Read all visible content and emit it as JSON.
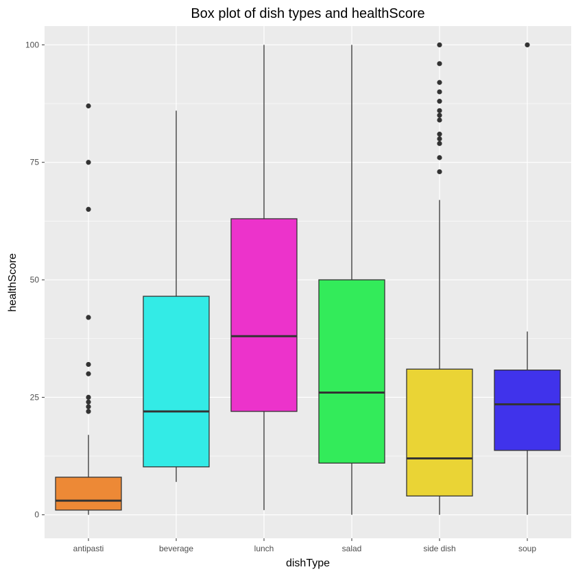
{
  "chart_data": {
    "type": "boxplot",
    "title": "Box plot of dish types and healthScore",
    "xlabel": "dishType",
    "ylabel": "healthScore",
    "ylim": [
      -5,
      104
    ],
    "yticks": [
      0,
      25,
      50,
      75,
      100
    ],
    "grid": true,
    "categories": [
      "antipasti",
      "beverage",
      "lunch",
      "salad",
      "side dish",
      "soup"
    ],
    "boxes": [
      {
        "category": "antipasti",
        "color": "#ED8936",
        "whisker_low": 0,
        "q1": 1,
        "median": 3,
        "q3": 8,
        "whisker_high": 17,
        "outliers": [
          22,
          23,
          24,
          25,
          30,
          32,
          42,
          65,
          75,
          87
        ]
      },
      {
        "category": "beverage",
        "color": "#33EBE6",
        "whisker_low": 7,
        "q1": 10.2,
        "median": 22,
        "q3": 46.5,
        "whisker_high": 86,
        "outliers": []
      },
      {
        "category": "lunch",
        "color": "#EC33CB",
        "whisker_low": 1,
        "q1": 22,
        "median": 38,
        "q3": 63,
        "whisker_high": 100,
        "outliers": []
      },
      {
        "category": "salad",
        "color": "#33EB5A",
        "whisker_low": 0,
        "q1": 11,
        "median": 26,
        "q3": 50,
        "whisker_high": 100,
        "outliers": []
      },
      {
        "category": "side dish",
        "color": "#EAD435",
        "whisker_low": 0,
        "q1": 4,
        "median": 12,
        "q3": 31,
        "whisker_high": 67,
        "outliers": [
          73,
          76,
          79,
          80,
          81,
          84,
          85,
          86,
          88,
          90,
          92,
          96,
          100
        ]
      },
      {
        "category": "soup",
        "color": "#4033EB",
        "whisker_low": 0,
        "q1": 13.7,
        "median": 23.5,
        "q3": 30.8,
        "whisker_high": 39,
        "outliers": [
          100
        ]
      }
    ]
  }
}
